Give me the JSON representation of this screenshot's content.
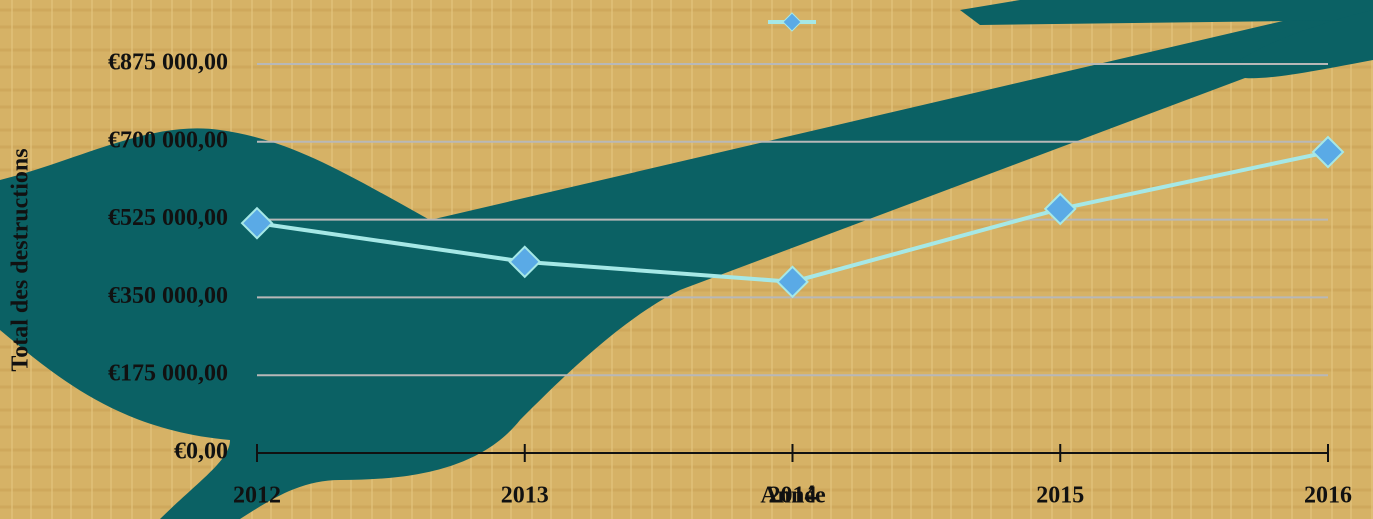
{
  "chart_data": {
    "type": "line",
    "x_label": "Année",
    "y_label": "Total des destructions",
    "categories": [
      "2012",
      "2013",
      "2014",
      "2015",
      "2016"
    ],
    "series": [
      {
        "color": "#a6e8e6",
        "marker_color": "#5aaae6",
        "values": [
          517000,
          430000,
          385000,
          549000,
          677000
        ]
      }
    ],
    "ylim": [
      0,
      875000
    ],
    "yticks": [
      {
        "value": 0,
        "label": "€0,00"
      },
      {
        "value": 175000,
        "label": "€175 000,00"
      },
      {
        "value": 350000,
        "label": "€350 000,00"
      },
      {
        "value": 525000,
        "label": "€525 000,00"
      },
      {
        "value": 700000,
        "label": "€700 000,00"
      },
      {
        "value": 875000,
        "label": "€875 000,00"
      }
    ],
    "grid": true
  }
}
